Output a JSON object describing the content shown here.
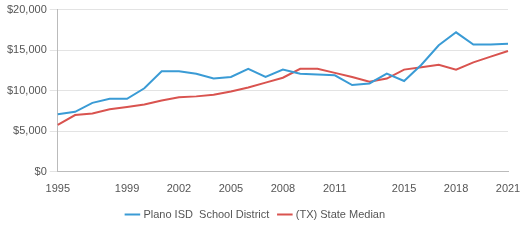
{
  "chart_data": {
    "type": "line",
    "categories": [
      "1995",
      null,
      null,
      null,
      "1999",
      null,
      null,
      "2002",
      null,
      null,
      "2005",
      null,
      null,
      "2008",
      null,
      null,
      "2011",
      null,
      null,
      null,
      "2015",
      null,
      null,
      "2018",
      null,
      null,
      "2021"
    ],
    "series": [
      {
        "name": "Plano ISD  School District",
        "color": "#3a9bd5",
        "values": [
          7100,
          7400,
          8500,
          9000,
          9000,
          10300,
          12400,
          12400,
          12100,
          11500,
          11700,
          12700,
          11700,
          12600,
          12100,
          12000,
          11900,
          10700,
          10900,
          12100,
          11200,
          13200,
          15600,
          17200,
          15700,
          15700,
          15800
        ]
      },
      {
        "name": "(TX) State Median",
        "color": "#d9534f",
        "values": [
          5800,
          7000,
          7200,
          7700,
          8000,
          8300,
          8800,
          9200,
          9300,
          9500,
          9900,
          10400,
          11000,
          11600,
          12700,
          12700,
          12200,
          11700,
          11100,
          11500,
          12600,
          12900,
          13200,
          12600,
          13500,
          14200,
          14900
        ]
      }
    ],
    "ylim": [
      0,
      20000
    ],
    "yticks": [
      {
        "value": 0,
        "label": "$0"
      },
      {
        "value": 5000,
        "label": "$5,000"
      },
      {
        "value": 10000,
        "label": "$10,000"
      },
      {
        "value": 15000,
        "label": "$15,000"
      },
      {
        "value": 20000,
        "label": "$20,000"
      }
    ],
    "grid": true,
    "legend": "bottom"
  }
}
